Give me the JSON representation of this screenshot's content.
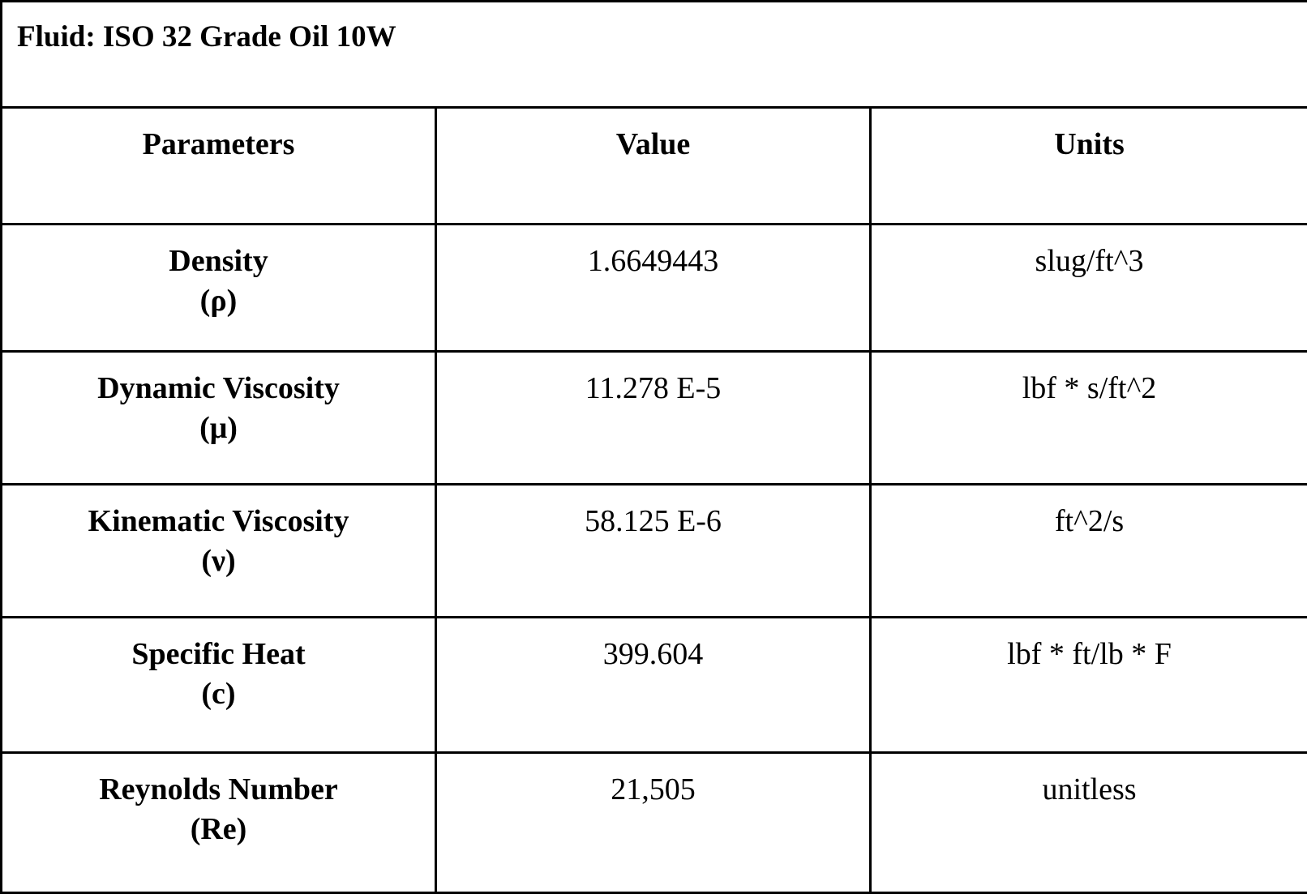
{
  "title": "Fluid: ISO 32 Grade Oil 10W",
  "headers": {
    "parameters": "Parameters",
    "value": "Value",
    "units": "Units"
  },
  "rows": [
    {
      "name": "Density",
      "symbol": "(ρ)",
      "value": "1.6649443",
      "units": "slug/ft^3"
    },
    {
      "name": "Dynamic Viscosity",
      "symbol": "(μ)",
      "value": "11.278 E-5",
      "units": "lbf * s/ft^2"
    },
    {
      "name": "Kinematic Viscosity",
      "symbol": "(ν)",
      "value": "58.125 E-6",
      "units": "ft^2/s"
    },
    {
      "name": "Specific Heat",
      "symbol": "(c)",
      "value": "399.604",
      "units": "lbf * ft/lb * F"
    },
    {
      "name": "Reynolds Number",
      "symbol": "(Re)",
      "value": "21,505",
      "units": "unitless"
    }
  ]
}
